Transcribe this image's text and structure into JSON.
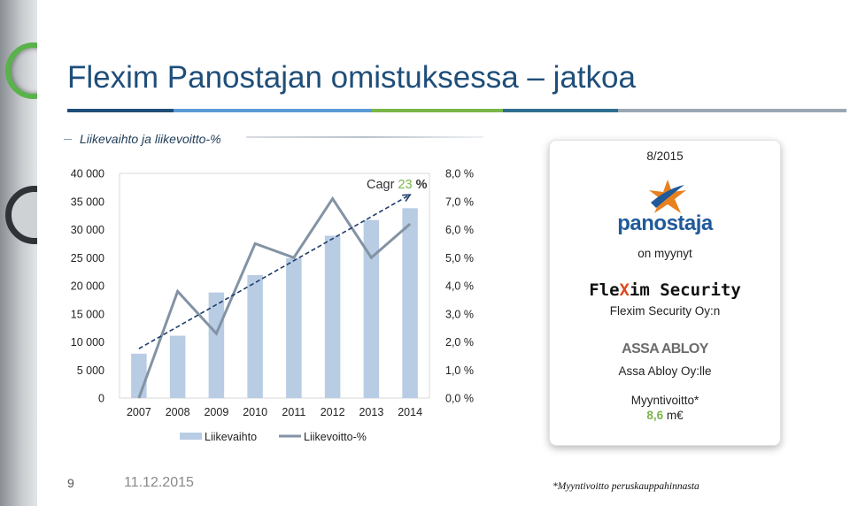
{
  "slide": {
    "title": "Flexim Panostajan omistuksessa – jatkoa",
    "subtitle": "Liikevaihto ja liikevoitto-%",
    "page_number": "9",
    "date": "11.12.2015",
    "footnote": "*Myyntivoitto peruskauppahinnasta"
  },
  "chart_data": {
    "type": "bar",
    "categories": [
      "2007",
      "2008",
      "2009",
      "2010",
      "2011",
      "2012",
      "2013",
      "2014"
    ],
    "series": [
      {
        "name": "Liikevaihto",
        "type": "bar",
        "axis": "left",
        "color": "#b8cce4",
        "values": [
          7900,
          11100,
          18800,
          21900,
          24900,
          28900,
          31700,
          33800
        ]
      },
      {
        "name": "Liikevoitto-%",
        "type": "line",
        "axis": "right",
        "color": "#8393a4",
        "values": [
          0.0,
          3.8,
          2.3,
          5.5,
          5.0,
          7.1,
          5.0,
          6.2
        ]
      }
    ],
    "trendline": {
      "color": "#1f3d6b",
      "style": "dashed",
      "from": {
        "x": "2007",
        "y": 8800
      },
      "to": {
        "x": "2014",
        "y": 36200
      }
    },
    "annotation": {
      "prefix": "Cagr ",
      "value": "23",
      "suffix": " %"
    },
    "y_left": {
      "min": 0,
      "max": 40000,
      "ticks": [
        "0",
        "5 000",
        "10 000",
        "15 000",
        "20 000",
        "25 000",
        "30 000",
        "35 000",
        "40 000"
      ]
    },
    "y_right": {
      "min": 0,
      "max": 8,
      "ticks": [
        "0,0 %",
        "1,0 %",
        "2,0 %",
        "3,0 %",
        "4,0 %",
        "5,0 %",
        "6,0 %",
        "7,0 %",
        "8,0 %"
      ]
    },
    "legend": {
      "placement": "bottom",
      "items": [
        "Liikevaihto",
        "Liikevoitto-%"
      ]
    },
    "grid": false
  },
  "card": {
    "date_label": "8/2015",
    "panostaja_logo_text": "panostaja",
    "sold_label": "on myynyt",
    "flexim_logo_text": [
      "Fle",
      "X",
      "im Security"
    ],
    "flexim_label": "Flexim Security Oy:n",
    "assa_logo_text": "ASSA ABLOY",
    "assa_label": "Assa Abloy Oy:lle",
    "gain_label": "Myyntivoitto*",
    "gain_value": "8,6",
    "gain_unit": " m€"
  },
  "colors": {
    "title": "#1f4e79",
    "accent_green": "#7ab648",
    "bar": "#b8cce4",
    "line": "#8393a4"
  }
}
